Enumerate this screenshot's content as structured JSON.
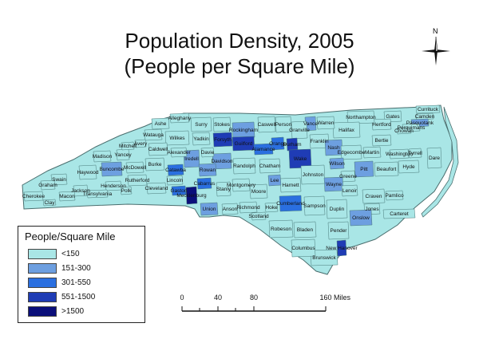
{
  "title_line1": "Population Density, 2005",
  "title_line2": "(People per Square Mile)",
  "legend": {
    "title": "People/Square Mile",
    "classes": [
      {
        "label": "<150",
        "color": "#a9e6e6"
      },
      {
        "label": "151-300",
        "color": "#6d9fe0"
      },
      {
        "label": "301-550",
        "color": "#2a6fe0"
      },
      {
        "label": "551-1500",
        "color": "#1f3cb5"
      },
      {
        "label": ">1500",
        "color": "#0b0f7a"
      }
    ]
  },
  "scale": {
    "ticks": [
      "0",
      "40",
      "80",
      "160"
    ],
    "units": "Miles"
  },
  "compass": {
    "north": "N"
  },
  "counties": [
    {
      "name": "Currituck",
      "density_class": 0
    },
    {
      "name": "Camden",
      "density_class": 0
    },
    {
      "name": "Pasquotank",
      "density_class": 1
    },
    {
      "name": "Perquimans",
      "density_class": 0
    },
    {
      "name": "Chowan",
      "density_class": 0
    },
    {
      "name": "Gates",
      "density_class": 0
    },
    {
      "name": "Hertford",
      "density_class": 0
    },
    {
      "name": "Northampton",
      "density_class": 0
    },
    {
      "name": "Halifax",
      "density_class": 0
    },
    {
      "name": "Warren",
      "density_class": 0
    },
    {
      "name": "Vance",
      "density_class": 1
    },
    {
      "name": "Granville",
      "density_class": 0
    },
    {
      "name": "Person",
      "density_class": 0
    },
    {
      "name": "Caswell",
      "density_class": 0
    },
    {
      "name": "Rockingham",
      "density_class": 1
    },
    {
      "name": "Stokes",
      "density_class": 0
    },
    {
      "name": "Surry",
      "density_class": 0
    },
    {
      "name": "Alleghany",
      "density_class": 0
    },
    {
      "name": "Ashe",
      "density_class": 0
    },
    {
      "name": "Watauga",
      "density_class": 0
    },
    {
      "name": "Wilkes",
      "density_class": 0
    },
    {
      "name": "Yadkin",
      "density_class": 0
    },
    {
      "name": "Forsyth",
      "density_class": 3
    },
    {
      "name": "Guilford",
      "density_class": 3
    },
    {
      "name": "Alamance",
      "density_class": 2
    },
    {
      "name": "Orange",
      "density_class": 2
    },
    {
      "name": "Durham",
      "density_class": 3
    },
    {
      "name": "Wake",
      "density_class": 3
    },
    {
      "name": "Franklin",
      "density_class": 0
    },
    {
      "name": "Nash",
      "density_class": 1
    },
    {
      "name": "Edgecombe",
      "density_class": 0
    },
    {
      "name": "Martin",
      "density_class": 0
    },
    {
      "name": "Bertie",
      "density_class": 0
    },
    {
      "name": "Washington",
      "density_class": 0
    },
    {
      "name": "Tyrrell",
      "density_class": 0
    },
    {
      "name": "Dare",
      "density_class": 0
    },
    {
      "name": "Hyde",
      "density_class": 0
    },
    {
      "name": "Beaufort",
      "density_class": 0
    },
    {
      "name": "Pitt",
      "density_class": 1
    },
    {
      "name": "Greene",
      "density_class": 0
    },
    {
      "name": "Wilson",
      "density_class": 1
    },
    {
      "name": "Johnston",
      "density_class": 0
    },
    {
      "name": "Wayne",
      "density_class": 1
    },
    {
      "name": "Lenoir",
      "density_class": 0
    },
    {
      "name": "Craven",
      "density_class": 0
    },
    {
      "name": "Pamlico",
      "density_class": 0
    },
    {
      "name": "Carteret",
      "density_class": 0
    },
    {
      "name": "Jones",
      "density_class": 0
    },
    {
      "name": "Onslow",
      "density_class": 1
    },
    {
      "name": "Duplin",
      "density_class": 0
    },
    {
      "name": "Sampson",
      "density_class": 0
    },
    {
      "name": "Pender",
      "density_class": 0
    },
    {
      "name": "New Hanover",
      "density_class": 3
    },
    {
      "name": "Brunswick",
      "density_class": 0
    },
    {
      "name": "Columbus",
      "density_class": 0
    },
    {
      "name": "Bladen",
      "density_class": 0
    },
    {
      "name": "Robeson",
      "density_class": 0
    },
    {
      "name": "Cumberland",
      "density_class": 2
    },
    {
      "name": "Harnett",
      "density_class": 0
    },
    {
      "name": "Lee",
      "density_class": 1
    },
    {
      "name": "Chatham",
      "density_class": 0
    },
    {
      "name": "Randolph",
      "density_class": 0
    },
    {
      "name": "Davidson",
      "density_class": 1
    },
    {
      "name": "Davie",
      "density_class": 0
    },
    {
      "name": "Iredell",
      "density_class": 1
    },
    {
      "name": "Alexander",
      "density_class": 0
    },
    {
      "name": "Caldwell",
      "density_class": 0
    },
    {
      "name": "Burke",
      "density_class": 0
    },
    {
      "name": "Catawba",
      "density_class": 2
    },
    {
      "name": "Lincoln",
      "density_class": 0
    },
    {
      "name": "Gaston",
      "density_class": 2
    },
    {
      "name": "Mecklenburg",
      "density_class": 4
    },
    {
      "name": "Cabarrus",
      "density_class": 2
    },
    {
      "name": "Rowan",
      "density_class": 1
    },
    {
      "name": "Stanly",
      "density_class": 0
    },
    {
      "name": "Montgomery",
      "density_class": 0
    },
    {
      "name": "Moore",
      "density_class": 0
    },
    {
      "name": "Hoke",
      "density_class": 0
    },
    {
      "name": "Scotland",
      "density_class": 0
    },
    {
      "name": "Richmond",
      "density_class": 0
    },
    {
      "name": "Anson",
      "density_class": 0
    },
    {
      "name": "Union",
      "density_class": 1
    },
    {
      "name": "Cleveland",
      "density_class": 0
    },
    {
      "name": "Rutherford",
      "density_class": 0
    },
    {
      "name": "Polk",
      "density_class": 0
    },
    {
      "name": "Henderson",
      "density_class": 0
    },
    {
      "name": "Buncombe",
      "density_class": 1
    },
    {
      "name": "McDowell",
      "density_class": 0
    },
    {
      "name": "Yancey",
      "density_class": 0
    },
    {
      "name": "Mitchell",
      "density_class": 0
    },
    {
      "name": "Avery",
      "density_class": 0
    },
    {
      "name": "Madison",
      "density_class": 0
    },
    {
      "name": "Haywood",
      "density_class": 0
    },
    {
      "name": "Transylvania",
      "density_class": 0
    },
    {
      "name": "Jackson",
      "density_class": 0
    },
    {
      "name": "Swain",
      "density_class": 0
    },
    {
      "name": "Graham",
      "density_class": 0
    },
    {
      "name": "Cherokee",
      "density_class": 0
    },
    {
      "name": "Clay",
      "density_class": 0
    },
    {
      "name": "Macon",
      "density_class": 0
    }
  ]
}
